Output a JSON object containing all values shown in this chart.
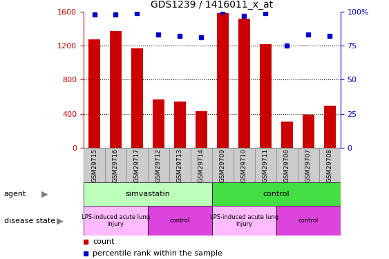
{
  "title": "GDS1239 / 1416011_x_at",
  "samples": [
    "GSM29715",
    "GSM29716",
    "GSM29717",
    "GSM29712",
    "GSM29713",
    "GSM29714",
    "GSM29709",
    "GSM29710",
    "GSM29711",
    "GSM29706",
    "GSM29707",
    "GSM29708"
  ],
  "counts": [
    1270,
    1370,
    1170,
    570,
    545,
    430,
    1580,
    1520,
    1220,
    310,
    390,
    490
  ],
  "percentiles": [
    98,
    98,
    99,
    83,
    82,
    81,
    100,
    97,
    99,
    75,
    83,
    82
  ],
  "ylim_left": [
    0,
    1600
  ],
  "ylim_right": [
    0,
    100
  ],
  "yticks_left": [
    0,
    400,
    800,
    1200,
    1600
  ],
  "yticks_right": [
    0,
    25,
    50,
    75,
    100
  ],
  "bar_color": "#cc0000",
  "dot_color": "#0000cc",
  "agent_groups": [
    {
      "label": "simvastatin",
      "start": 0,
      "end": 6,
      "color": "#bbffbb"
    },
    {
      "label": "control",
      "start": 6,
      "end": 12,
      "color": "#44dd44"
    }
  ],
  "disease_groups": [
    {
      "label": "LPS-induced acute lung\ninjury",
      "start": 0,
      "end": 3,
      "color": "#ffbbff"
    },
    {
      "label": "control",
      "start": 3,
      "end": 6,
      "color": "#dd44dd"
    },
    {
      "label": "LPS-induced acute lung\ninjury",
      "start": 6,
      "end": 9,
      "color": "#ffbbff"
    },
    {
      "label": "control",
      "start": 9,
      "end": 12,
      "color": "#dd44dd"
    }
  ],
  "legend_count_color": "#cc0000",
  "legend_pct_color": "#0000cc",
  "sample_bg_color": "#cccccc",
  "sample_border_color": "#888888"
}
